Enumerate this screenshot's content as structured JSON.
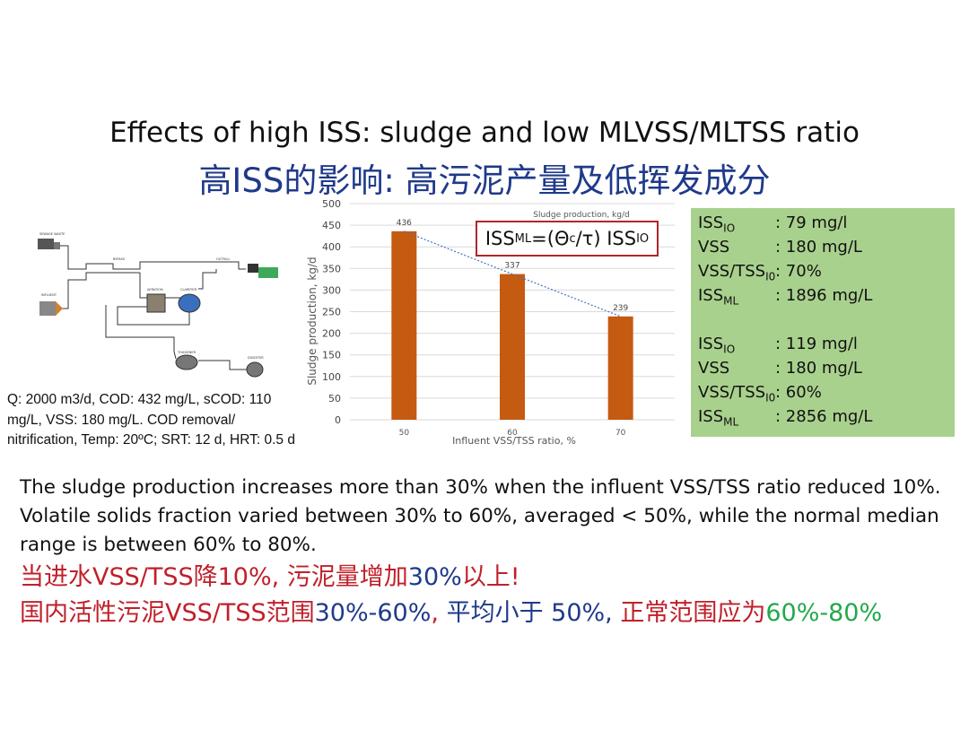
{
  "title_en": "Effects of high ISS: sludge and low MLVSS/MLTSS ratio",
  "title_zh": "高ISS的影响: 高污泥产量及低挥发成分",
  "process_diagram": {
    "labels": [
      "SEWAGE WASTE",
      "BYPASS",
      "OUTFALL",
      "INFLUENT",
      "AERATION",
      "CLARIFIER",
      "THICKENER",
      "DIGESTER"
    ]
  },
  "conditions_text": "Q: 2000 m3/d, COD: 432 mg/L, sCOD: 110 mg/L, VSS: 180 mg/L. COD removal/ nitrification, Temp: 20ºC; SRT: 12 d,  HRT: 0.5 d",
  "formula": {
    "lhs": "ISS",
    "lhs_sub": "ML",
    "eq": "=(",
    "theta": "Θ",
    "theta_sub": "c",
    "slash": "/",
    "tau": "τ",
    "close": ") ",
    "rhs": "ISS",
    "rhs_sub": "IO"
  },
  "chart_data": {
    "type": "bar",
    "title": "Sludge production, kg/d",
    "xlabel": "Influent VSS/TSS ratio, %",
    "ylabel": "Sludge production, kg/d",
    "categories": [
      "50",
      "60",
      "70"
    ],
    "values": [
      436,
      337,
      239
    ],
    "data_labels": [
      "436",
      "337",
      "239"
    ],
    "ylim": [
      0,
      500
    ],
    "yticks": [
      "0",
      "50",
      "100",
      "150",
      "200",
      "250",
      "300",
      "350",
      "400",
      "450",
      "500"
    ],
    "trendline": "linear, dotted",
    "bar_color": "#c55a11",
    "trend_color": "#4472c4",
    "grid": true
  },
  "green_box": {
    "block1": [
      {
        "label": "ISS",
        "sub": "IO",
        "value": ": 79 mg/l"
      },
      {
        "label": "VSS",
        "sub": "",
        "value": ": 180 mg/L"
      },
      {
        "label": "VSS/TSS",
        "sub": "I0",
        "value": ": 70%"
      },
      {
        "label": "ISS",
        "sub": "ML",
        "value": ": 1896 mg/L"
      }
    ],
    "block2": [
      {
        "label": "ISS",
        "sub": "IO",
        "value": ": 119 mg/l"
      },
      {
        "label": "VSS",
        "sub": "",
        "value": ": 180 mg/L"
      },
      {
        "label": "VSS/TSS",
        "sub": "I0",
        "value": ": 60%"
      },
      {
        "label": "ISS",
        "sub": "ML",
        "value": ": 2856 mg/L"
      }
    ]
  },
  "summary_en": "The sludge production increases more than 30% when the influent VSS/TSS ratio reduced 10%. Volatile solids fraction varied between 30% to 60%, averaged < 50%, while the normal median range is between 60% to 80%.",
  "summary_zh": {
    "line1": [
      {
        "text": "当进水VSS/TSS降10%, 污泥量增加",
        "color": "red"
      },
      {
        "text": "30%",
        "color": "blue"
      },
      {
        "text": "以上!",
        "color": "red"
      }
    ],
    "line2": [
      {
        "text": "国内活性污泥VSS/TSS范围",
        "color": "red"
      },
      {
        "text": "30%-60%",
        "color": "blue"
      },
      {
        "text": ", ",
        "color": "red"
      },
      {
        "text": "平均小于 50%, ",
        "color": "blue"
      },
      {
        "text": "正常范围应为",
        "color": "red"
      },
      {
        "text": "60%-80%",
        "color": "green"
      }
    ]
  },
  "colors": {
    "title_zh": "#1f3a8a",
    "red": "#c0202a",
    "blue": "#1f3a8a",
    "green": "#22a84a",
    "green_box": "#a9d18e",
    "formula_border": "#b0262a"
  }
}
